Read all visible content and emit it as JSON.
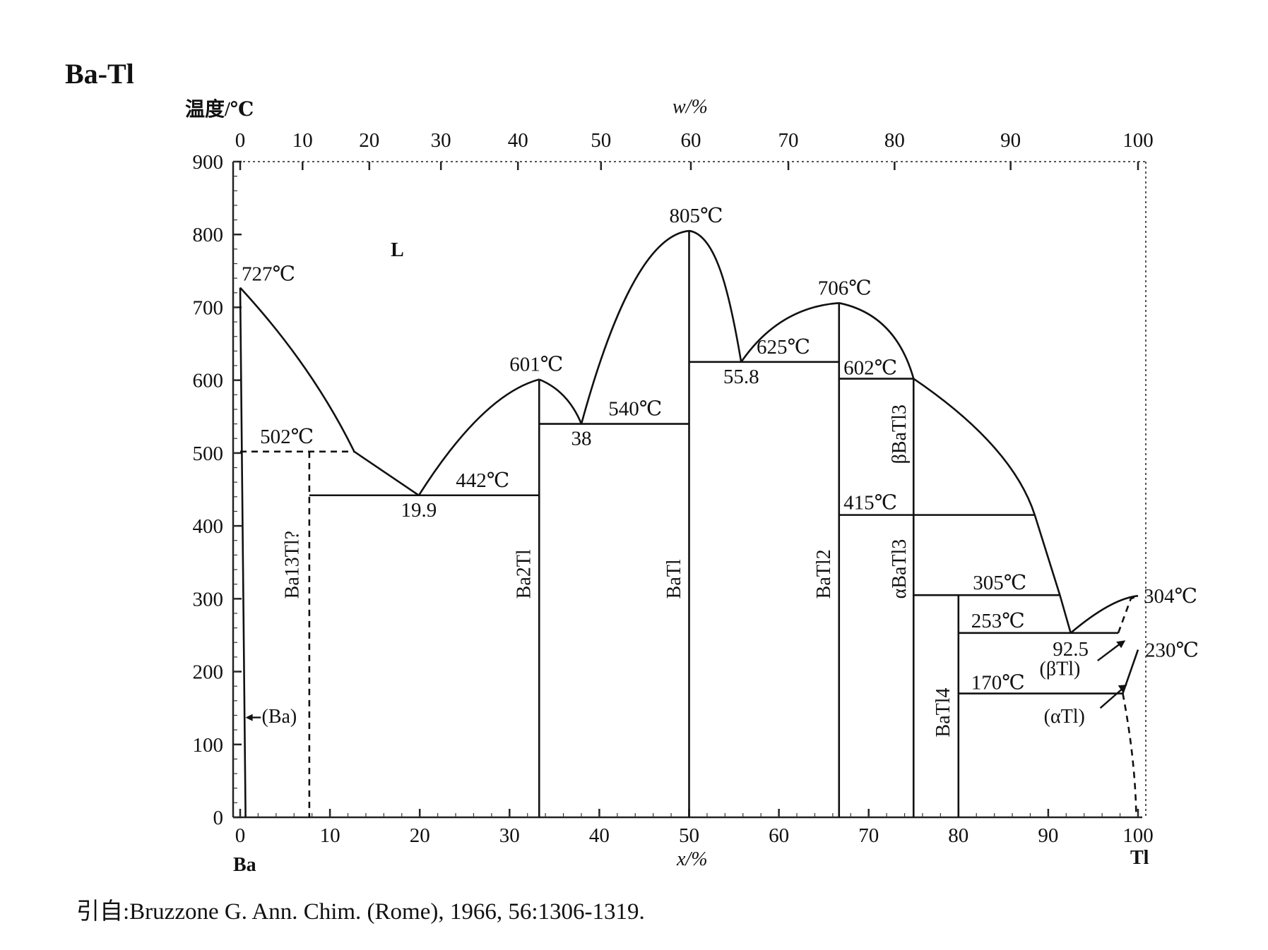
{
  "title": "Ba-Tl",
  "source": "引自:Bruzzone G. Ann. Chim. (Rome), 1966, 56:1306-1319.",
  "chart_data": {
    "type": "phase-diagram",
    "y_axis": {
      "label": "温度/℃",
      "ticks": [
        0,
        100,
        200,
        300,
        400,
        500,
        600,
        700,
        800,
        900
      ],
      "range": [
        0,
        900
      ]
    },
    "x_axis_bottom": {
      "label": "x/%",
      "ticks": [
        0,
        10,
        20,
        30,
        40,
        50,
        60,
        70,
        80,
        90,
        100
      ],
      "range": [
        0,
        100
      ],
      "left_element": "Ba",
      "right_element": "Tl"
    },
    "x_axis_top": {
      "label": "w/%",
      "ticks": [
        0,
        10,
        20,
        30,
        40,
        50,
        60,
        70,
        80,
        90,
        100
      ]
    },
    "melting_points": [
      {
        "label": "727℃",
        "x": 0,
        "T": 727
      },
      {
        "label": "304℃",
        "x": 100,
        "T": 304
      }
    ],
    "congruent_maxima": [
      {
        "label": "601℃",
        "x": 33.3,
        "T": 601
      },
      {
        "label": "805℃",
        "x": 50,
        "T": 805
      },
      {
        "label": "706℃",
        "x": 66.7,
        "T": 706
      }
    ],
    "invariant_lines": [
      {
        "label": "502℃",
        "T": 502,
        "x_start": 0,
        "x_end": 12.7,
        "style": "dashed"
      },
      {
        "label": "442℃",
        "T": 442,
        "x_start": 7.7,
        "x_end": 33.3,
        "composition_label": "19.9",
        "composition": 19.9
      },
      {
        "label": "540℃",
        "T": 540,
        "x_start": 33.3,
        "x_end": 50,
        "composition_label": "38",
        "composition": 38
      },
      {
        "label": "625℃",
        "T": 625,
        "x_start": 50,
        "x_end": 66.7,
        "composition_label": "55.8",
        "composition": 55.8
      },
      {
        "label": "602℃",
        "T": 602,
        "x_start": 66.7,
        "x_end": 75
      },
      {
        "label": "415℃",
        "T": 415,
        "x_start": 66.7,
        "x_end": 88.5
      },
      {
        "label": "305℃",
        "T": 305,
        "x_start": 75,
        "x_end": 91.3
      },
      {
        "label": "253℃",
        "T": 253,
        "x_start": 80,
        "x_end": 97.8,
        "composition_label": "92.5",
        "composition": 92.5
      },
      {
        "label": "170℃",
        "T": 170,
        "x_start": 80,
        "x_end": 98.3
      }
    ],
    "phases": [
      {
        "label": "L"
      },
      {
        "label": "(Ba)"
      },
      {
        "label": "Ba13Tl?",
        "x": 7.7
      },
      {
        "label": "Ba2Tl",
        "x": 33.3
      },
      {
        "label": "BaTl",
        "x": 50
      },
      {
        "label": "BaTl2",
        "x": 66.7
      },
      {
        "label": "βBaTl3",
        "x": 75
      },
      {
        "label": "αBaTl3",
        "x": 75
      },
      {
        "label": "BaTl4",
        "x": 80
      },
      {
        "label": "(βTl)"
      },
      {
        "label": "(αTl)"
      },
      {
        "label": "230℃",
        "T": 230
      }
    ]
  }
}
